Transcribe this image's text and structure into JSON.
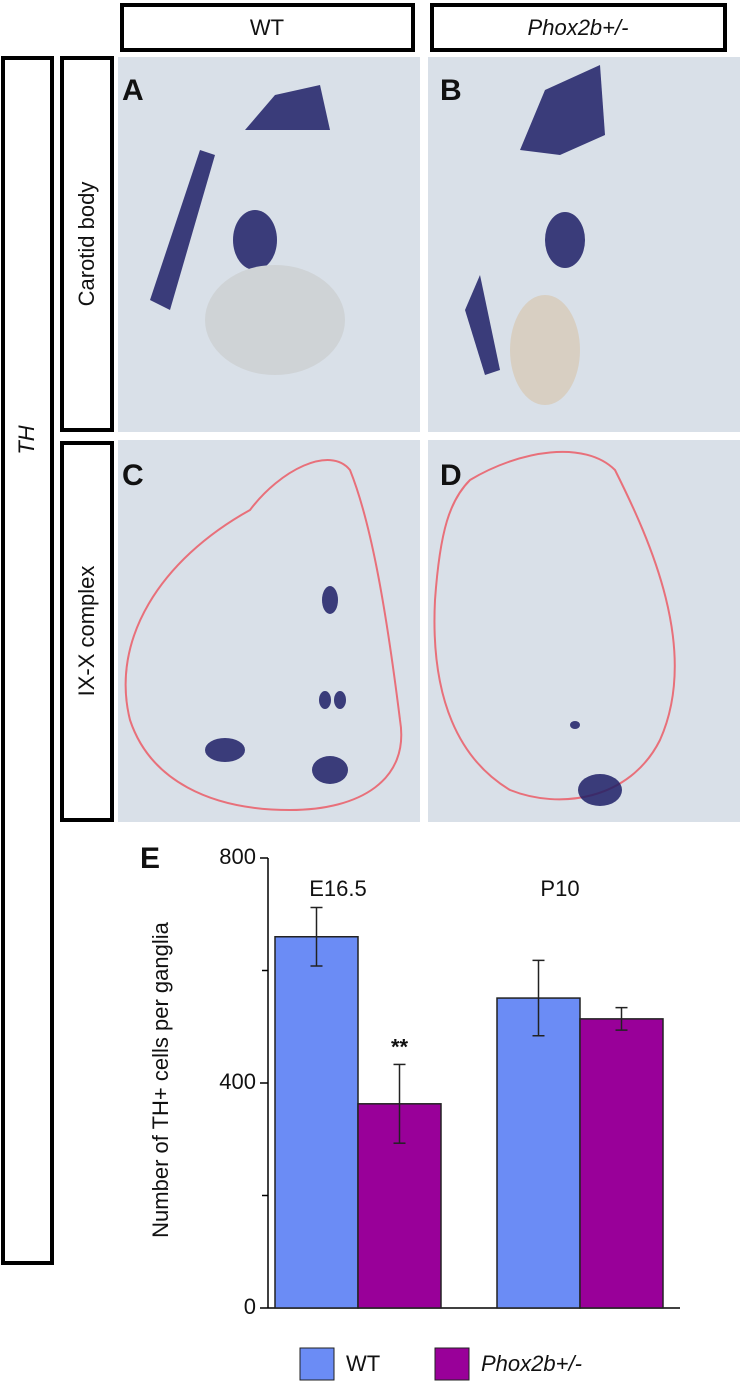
{
  "figure": {
    "columns": [
      "WT",
      "Phox2b+/-"
    ],
    "row_group": "TH",
    "rows": [
      "Carotid body",
      "IX-X complex"
    ],
    "letters": [
      "A",
      "B",
      "C",
      "D"
    ]
  },
  "chart_data": {
    "type": "bar",
    "panel_letter": "E",
    "y_label": "Number of TH+ cells per ganglia",
    "categories": [
      "E16.5",
      "P10"
    ],
    "series": [
      {
        "name": "WT",
        "color": "#6b8cf5",
        "values": [
          660,
          551
        ],
        "errors": [
          52,
          67
        ]
      },
      {
        "name": "Phox2b+/-",
        "color": "#990099",
        "values": [
          363,
          514
        ],
        "errors": [
          70,
          20
        ]
      }
    ],
    "annotations": [
      {
        "text": "**",
        "series": 1,
        "index": 0
      }
    ],
    "ylim": [
      0,
      800
    ],
    "yticks": [
      0,
      400,
      800
    ],
    "minor_yticks": [
      200,
      600
    ]
  }
}
